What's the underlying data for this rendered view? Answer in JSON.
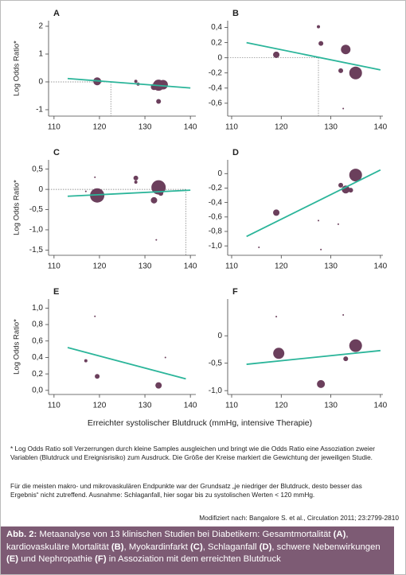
{
  "chart_data": [
    {
      "type": "scatter",
      "label": "A",
      "ylabel": "Log Odds Ratio*",
      "xlim": [
        108.8,
        141.2
      ],
      "xticks": [
        110,
        120,
        130,
        140
      ],
      "ylim": [
        -1.23,
        2.2
      ],
      "yticks": [
        -1,
        0,
        1,
        2
      ],
      "x": [
        119.5,
        128,
        128.5,
        132,
        133,
        134,
        133
      ],
      "values": [
        0.02,
        0.02,
        -0.08,
        -0.18,
        -0.12,
        -0.1,
        -0.7
      ],
      "sizes": [
        5,
        2,
        2,
        4,
        7,
        6,
        3
      ],
      "color": "#6b3f5c",
      "fit": {
        "x": [
          113,
          140
        ],
        "values": [
          0.12,
          -0.22
        ],
        "color": "#2bb59a"
      },
      "guide": {
        "x": 122.5,
        "y": 0
      }
    },
    {
      "type": "scatter",
      "label": "B",
      "xlim": [
        109.2,
        140.5
      ],
      "xticks": [
        110,
        120,
        130,
        140
      ],
      "ylim": [
        -0.77,
        0.49
      ],
      "yticks": [
        {
          "value": -0.6,
          "label": "-0,6"
        },
        {
          "value": -0.4,
          "label": "-0,4"
        },
        {
          "value": -0.2,
          "label": "-0,2"
        },
        0,
        {
          "value": 0.2,
          "label": "0,2"
        },
        {
          "value": 0.4,
          "label": "0,4"
        }
      ],
      "x": [
        119,
        127.5,
        128,
        133,
        132,
        135,
        132.5
      ],
      "values": [
        0.04,
        0.41,
        0.19,
        0.11,
        -0.17,
        -0.2,
        -0.67
      ],
      "sizes": [
        4,
        2,
        3,
        6,
        3,
        8,
        1
      ],
      "color": "#6b3f5c",
      "fit": {
        "x": [
          113,
          140
        ],
        "values": [
          0.2,
          -0.16
        ],
        "color": "#2bb59a"
      },
      "guide": {
        "x": 127.5,
        "y": 0
      }
    },
    {
      "type": "scatter",
      "label": "C",
      "ylabel": "Log Odds Ratio*",
      "xlim": [
        108.8,
        141.2
      ],
      "xticks": [
        110,
        120,
        130,
        140
      ],
      "ylim": [
        -1.63,
        0.73
      ],
      "yticks": [
        {
          "value": -1.5,
          "label": "-1,5"
        },
        {
          "value": -1,
          "label": "-1,0"
        },
        {
          "value": -0.5,
          "label": "-0,5"
        },
        0,
        {
          "value": 0.5,
          "label": "0,5"
        }
      ],
      "x": [
        117,
        119,
        119.5,
        128,
        128,
        132,
        133,
        133.5,
        132.5
      ],
      "values": [
        -0.05,
        0.3,
        -0.15,
        0.28,
        0.18,
        -0.27,
        0.05,
        -0.1,
        -1.25
      ],
      "sizes": [
        1,
        1,
        9,
        3,
        2,
        4,
        9,
        3,
        1
      ],
      "color": "#6b3f5c",
      "fit": {
        "x": [
          113,
          140
        ],
        "values": [
          -0.17,
          -0.02
        ],
        "color": "#2bb59a"
      },
      "guide": {
        "x": 139,
        "y": 0
      }
    },
    {
      "type": "scatter",
      "label": "D",
      "xlim": [
        109.2,
        140.5
      ],
      "xticks": [
        110,
        120,
        130,
        140
      ],
      "ylim": [
        -1.13,
        0.19
      ],
      "yticks": [
        {
          "value": -1,
          "label": "-1,0"
        },
        {
          "value": -0.8,
          "label": "-0,8"
        },
        {
          "value": -0.6,
          "label": "-0,6"
        },
        {
          "value": -0.4,
          "label": "-0,4"
        },
        {
          "value": -0.2,
          "label": "-0,2"
        },
        0
      ],
      "x": [
        119,
        115.5,
        127.5,
        128,
        131.5,
        132,
        133,
        134,
        135
      ],
      "values": [
        -0.54,
        -1.02,
        -0.65,
        -1.05,
        -0.7,
        -0.16,
        -0.22,
        -0.23,
        -0.02
      ],
      "sizes": [
        4,
        1,
        1,
        1,
        1,
        3,
        5,
        3,
        8
      ],
      "color": "#6b3f5c",
      "fit": {
        "x": [
          113,
          140
        ],
        "values": [
          -0.87,
          0.05
        ],
        "color": "#2bb59a"
      }
    },
    {
      "type": "scatter",
      "label": "E",
      "ylabel": "Log Odds Ratio*",
      "xlim": [
        108.8,
        141.2
      ],
      "xticks": [
        110,
        120,
        130,
        140
      ],
      "ylim": [
        -0.05,
        1.11
      ],
      "yticks": [
        {
          "value": 0,
          "label": "0,0"
        },
        {
          "value": 0.2,
          "label": "0,2"
        },
        {
          "value": 0.4,
          "label": "0,4"
        },
        {
          "value": 0.6,
          "label": "0,6"
        },
        {
          "value": 0.8,
          "label": "0,8"
        },
        {
          "value": 1,
          "label": "1,0"
        }
      ],
      "x": [
        117,
        119,
        119.5,
        133,
        134.5
      ],
      "values": [
        0.36,
        0.9,
        0.17,
        0.06,
        0.4
      ],
      "sizes": [
        2,
        1,
        3,
        4,
        1
      ],
      "color": "#6b3f5c",
      "fit": {
        "x": [
          113,
          139
        ],
        "values": [
          0.52,
          0.14
        ],
        "color": "#2bb59a"
      }
    },
    {
      "type": "scatter",
      "label": "F",
      "xlim": [
        109.2,
        140.5
      ],
      "xticks": [
        110,
        120,
        130,
        140
      ],
      "ylim": [
        -1.07,
        0.67
      ],
      "yticks": [
        {
          "value": -1,
          "label": "-1,0"
        },
        {
          "value": -0.5,
          "label": "-0,5"
        },
        0
      ],
      "x": [
        119,
        119.5,
        128,
        132.5,
        133,
        135
      ],
      "values": [
        0.35,
        -0.32,
        -0.88,
        0.38,
        -0.42,
        -0.18
      ],
      "sizes": [
        1,
        7,
        5,
        1,
        3,
        8
      ],
      "color": "#6b3f5c",
      "fit": {
        "x": [
          113,
          140
        ],
        "values": [
          -0.52,
          -0.27
        ],
        "color": "#2bb59a"
      }
    }
  ],
  "xlabel": "Erreichter systolischer Blutdruck (mmHg, intensive Therapie)",
  "footnote": "* Log Odds Ratio soll Verzerrungen durch kleine Samples ausgleichen und bringt wie die Odds Ratio eine Assoziation zweier Variablen (Blutdruck und Ereignisrisiko) zum Ausdruck. Die Größe der Kreise markiert die Gewichtung der jeweiligen Studie.",
  "note": "Für die meisten makro- und mikrovaskulären Endpunkte war der Grundsatz „je niedriger der Blutdruck, desto besser das Ergebnis“ nicht zutreffend. Ausnahme: Schlaganfall, hier sogar bis zu systolischen Werten < 120 mmHg.",
  "source": "Modifiziert nach: Bangalore S. et al., Circulation 2011; 23:2799-2810",
  "caption": [
    {
      "text": "Abb. 2:",
      "bold": true
    },
    {
      "text": " Metaanalyse von 13 klinischen Studien bei Diabetikern: Gesamtmortalität ",
      "bold": false
    },
    {
      "text": "(A)",
      "bold": true
    },
    {
      "text": ", kardiovaskuläre Mortalität ",
      "bold": false
    },
    {
      "text": "(B)",
      "bold": true
    },
    {
      "text": ", Myokardinfarkt ",
      "bold": false
    },
    {
      "text": "(C)",
      "bold": true
    },
    {
      "text": ", Schlaganfall ",
      "bold": false
    },
    {
      "text": "(D)",
      "bold": true
    },
    {
      "text": ", schwere Nebenwirkungen ",
      "bold": false
    },
    {
      "text": "(E)",
      "bold": true
    },
    {
      "text": " und Nephropathie ",
      "bold": false
    },
    {
      "text": "(F)",
      "bold": true
    },
    {
      "text": " in Assoziation mit dem erreichten Blutdruck",
      "bold": false
    }
  ]
}
